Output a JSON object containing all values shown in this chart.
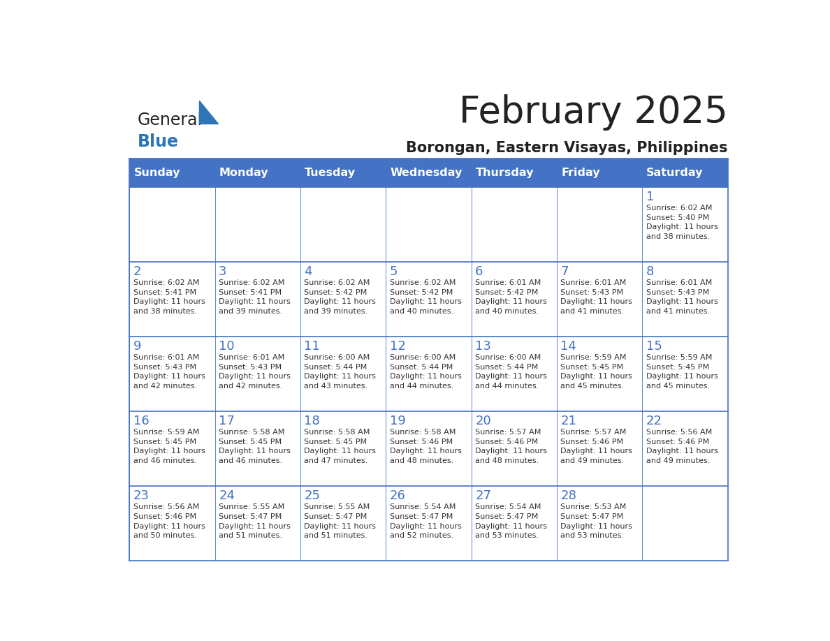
{
  "title": "February 2025",
  "subtitle": "Borongan, Eastern Visayas, Philippines",
  "days_of_week": [
    "Sunday",
    "Monday",
    "Tuesday",
    "Wednesday",
    "Thursday",
    "Friday",
    "Saturday"
  ],
  "header_bg_color": "#4472C4",
  "header_text_color": "#FFFFFF",
  "cell_bg_color": "#FFFFFF",
  "grid_line_color": "#4472C4",
  "day_number_color": "#4472C4",
  "cell_text_color": "#333333",
  "title_color": "#222222",
  "subtitle_color": "#222222",
  "logo_general_color": "#222222",
  "logo_blue_color": "#2E75B6",
  "weeks": [
    [
      {
        "day": null,
        "info": null
      },
      {
        "day": null,
        "info": null
      },
      {
        "day": null,
        "info": null
      },
      {
        "day": null,
        "info": null
      },
      {
        "day": null,
        "info": null
      },
      {
        "day": null,
        "info": null
      },
      {
        "day": 1,
        "info": "Sunrise: 6:02 AM\nSunset: 5:40 PM\nDaylight: 11 hours\nand 38 minutes."
      }
    ],
    [
      {
        "day": 2,
        "info": "Sunrise: 6:02 AM\nSunset: 5:41 PM\nDaylight: 11 hours\nand 38 minutes."
      },
      {
        "day": 3,
        "info": "Sunrise: 6:02 AM\nSunset: 5:41 PM\nDaylight: 11 hours\nand 39 minutes."
      },
      {
        "day": 4,
        "info": "Sunrise: 6:02 AM\nSunset: 5:42 PM\nDaylight: 11 hours\nand 39 minutes."
      },
      {
        "day": 5,
        "info": "Sunrise: 6:02 AM\nSunset: 5:42 PM\nDaylight: 11 hours\nand 40 minutes."
      },
      {
        "day": 6,
        "info": "Sunrise: 6:01 AM\nSunset: 5:42 PM\nDaylight: 11 hours\nand 40 minutes."
      },
      {
        "day": 7,
        "info": "Sunrise: 6:01 AM\nSunset: 5:43 PM\nDaylight: 11 hours\nand 41 minutes."
      },
      {
        "day": 8,
        "info": "Sunrise: 6:01 AM\nSunset: 5:43 PM\nDaylight: 11 hours\nand 41 minutes."
      }
    ],
    [
      {
        "day": 9,
        "info": "Sunrise: 6:01 AM\nSunset: 5:43 PM\nDaylight: 11 hours\nand 42 minutes."
      },
      {
        "day": 10,
        "info": "Sunrise: 6:01 AM\nSunset: 5:43 PM\nDaylight: 11 hours\nand 42 minutes."
      },
      {
        "day": 11,
        "info": "Sunrise: 6:00 AM\nSunset: 5:44 PM\nDaylight: 11 hours\nand 43 minutes."
      },
      {
        "day": 12,
        "info": "Sunrise: 6:00 AM\nSunset: 5:44 PM\nDaylight: 11 hours\nand 44 minutes."
      },
      {
        "day": 13,
        "info": "Sunrise: 6:00 AM\nSunset: 5:44 PM\nDaylight: 11 hours\nand 44 minutes."
      },
      {
        "day": 14,
        "info": "Sunrise: 5:59 AM\nSunset: 5:45 PM\nDaylight: 11 hours\nand 45 minutes."
      },
      {
        "day": 15,
        "info": "Sunrise: 5:59 AM\nSunset: 5:45 PM\nDaylight: 11 hours\nand 45 minutes."
      }
    ],
    [
      {
        "day": 16,
        "info": "Sunrise: 5:59 AM\nSunset: 5:45 PM\nDaylight: 11 hours\nand 46 minutes."
      },
      {
        "day": 17,
        "info": "Sunrise: 5:58 AM\nSunset: 5:45 PM\nDaylight: 11 hours\nand 46 minutes."
      },
      {
        "day": 18,
        "info": "Sunrise: 5:58 AM\nSunset: 5:45 PM\nDaylight: 11 hours\nand 47 minutes."
      },
      {
        "day": 19,
        "info": "Sunrise: 5:58 AM\nSunset: 5:46 PM\nDaylight: 11 hours\nand 48 minutes."
      },
      {
        "day": 20,
        "info": "Sunrise: 5:57 AM\nSunset: 5:46 PM\nDaylight: 11 hours\nand 48 minutes."
      },
      {
        "day": 21,
        "info": "Sunrise: 5:57 AM\nSunset: 5:46 PM\nDaylight: 11 hours\nand 49 minutes."
      },
      {
        "day": 22,
        "info": "Sunrise: 5:56 AM\nSunset: 5:46 PM\nDaylight: 11 hours\nand 49 minutes."
      }
    ],
    [
      {
        "day": 23,
        "info": "Sunrise: 5:56 AM\nSunset: 5:46 PM\nDaylight: 11 hours\nand 50 minutes."
      },
      {
        "day": 24,
        "info": "Sunrise: 5:55 AM\nSunset: 5:47 PM\nDaylight: 11 hours\nand 51 minutes."
      },
      {
        "day": 25,
        "info": "Sunrise: 5:55 AM\nSunset: 5:47 PM\nDaylight: 11 hours\nand 51 minutes."
      },
      {
        "day": 26,
        "info": "Sunrise: 5:54 AM\nSunset: 5:47 PM\nDaylight: 11 hours\nand 52 minutes."
      },
      {
        "day": 27,
        "info": "Sunrise: 5:54 AM\nSunset: 5:47 PM\nDaylight: 11 hours\nand 53 minutes."
      },
      {
        "day": 28,
        "info": "Sunrise: 5:53 AM\nSunset: 5:47 PM\nDaylight: 11 hours\nand 53 minutes."
      },
      {
        "day": null,
        "info": null
      }
    ]
  ]
}
